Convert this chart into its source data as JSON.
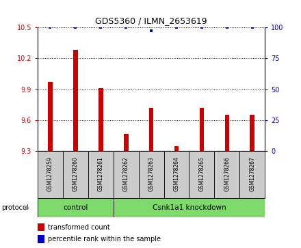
{
  "title": "GDS5360 / ILMN_2653619",
  "samples": [
    "GSM1278259",
    "GSM1278260",
    "GSM1278261",
    "GSM1278262",
    "GSM1278263",
    "GSM1278264",
    "GSM1278265",
    "GSM1278266",
    "GSM1278267"
  ],
  "transformed_counts": [
    9.97,
    10.28,
    9.91,
    9.47,
    9.72,
    9.35,
    9.72,
    9.65,
    9.65
  ],
  "percentile_ranks": [
    100,
    100,
    100,
    100,
    97,
    100,
    100,
    100,
    100
  ],
  "ylim_left": [
    9.3,
    10.5
  ],
  "ylim_right": [
    0,
    100
  ],
  "yticks_left": [
    9.3,
    9.6,
    9.9,
    10.2,
    10.5
  ],
  "yticks_right": [
    0,
    25,
    50,
    75,
    100
  ],
  "bar_color": "#CC0000",
  "dot_color": "#0000CC",
  "grid_color": "#000000",
  "tick_label_color_left": "#CC0000",
  "tick_label_color_right": "#0000CC",
  "legend_bar_label": "transformed count",
  "legend_dot_label": "percentile rank within the sample",
  "protocol_label": "protocol",
  "control_label": "control",
  "knockdown_label": "Csnk1a1 knockdown",
  "sample_box_color": "#CCCCCC",
  "green_color": "#7EDA6A",
  "bar_width": 0.18,
  "n_samples": 9,
  "n_control": 3,
  "n_knockdown": 6
}
